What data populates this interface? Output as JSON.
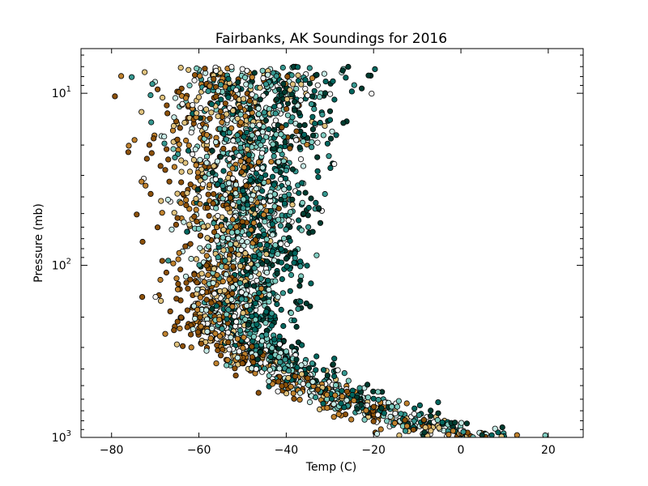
{
  "chart_data": {
    "type": "scatter",
    "title": "Fairbanks, AK Soundings for 2016",
    "xlabel": "Temp (C)",
    "ylabel": "Pressure (mb)",
    "xlim": [
      -87,
      28
    ],
    "ylim": [
      1000,
      5.5
    ],
    "yscale": "log",
    "y_inverted": true,
    "grid": false,
    "legend": "none",
    "x_ticks": [
      -80,
      -60,
      -40,
      -20,
      0,
      20
    ],
    "y_ticks": [
      {
        "value": 10,
        "base": "10",
        "exp": "1"
      },
      {
        "value": 100,
        "base": "10",
        "exp": "2"
      },
      {
        "value": 1000,
        "base": "10",
        "exp": "3"
      }
    ],
    "marker_edge_color": "#000000",
    "series_colors": [
      "#8c510a",
      "#bf812d",
      "#dfc27d",
      "#c7eae5",
      "#f5f5f5",
      "#80cdc1",
      "#35978f",
      "#01665e",
      "#003c30"
    ],
    "profile": [
      {
        "p": 1000,
        "t_mean": 5,
        "spread": 14
      },
      {
        "p": 950,
        "t_mean": -2,
        "spread": 13
      },
      {
        "p": 900,
        "t_mean": -5,
        "spread": 12
      },
      {
        "p": 850,
        "t_mean": -9,
        "spread": 11
      },
      {
        "p": 800,
        "t_mean": -13,
        "spread": 11
      },
      {
        "p": 700,
        "t_mean": -19,
        "spread": 10
      },
      {
        "p": 600,
        "t_mean": -26,
        "spread": 10
      },
      {
        "p": 500,
        "t_mean": -33,
        "spread": 9
      },
      {
        "p": 400,
        "t_mean": -41,
        "spread": 9
      },
      {
        "p": 300,
        "t_mean": -49,
        "spread": 8
      },
      {
        "p": 250,
        "t_mean": -52,
        "spread": 8
      },
      {
        "p": 200,
        "t_mean": -52,
        "spread": 9
      },
      {
        "p": 150,
        "t_mean": -51,
        "spread": 10
      },
      {
        "p": 100,
        "t_mean": -50,
        "spread": 10
      },
      {
        "p": 70,
        "t_mean": -50,
        "spread": 11
      },
      {
        "p": 50,
        "t_mean": -50,
        "spread": 12
      },
      {
        "p": 30,
        "t_mean": -50,
        "spread": 13
      },
      {
        "p": 20,
        "t_mean": -50,
        "spread": 15
      },
      {
        "p": 10,
        "t_mean": -49,
        "spread": 17
      },
      {
        "p": 7,
        "t_mean": -48,
        "spread": 18
      }
    ]
  }
}
